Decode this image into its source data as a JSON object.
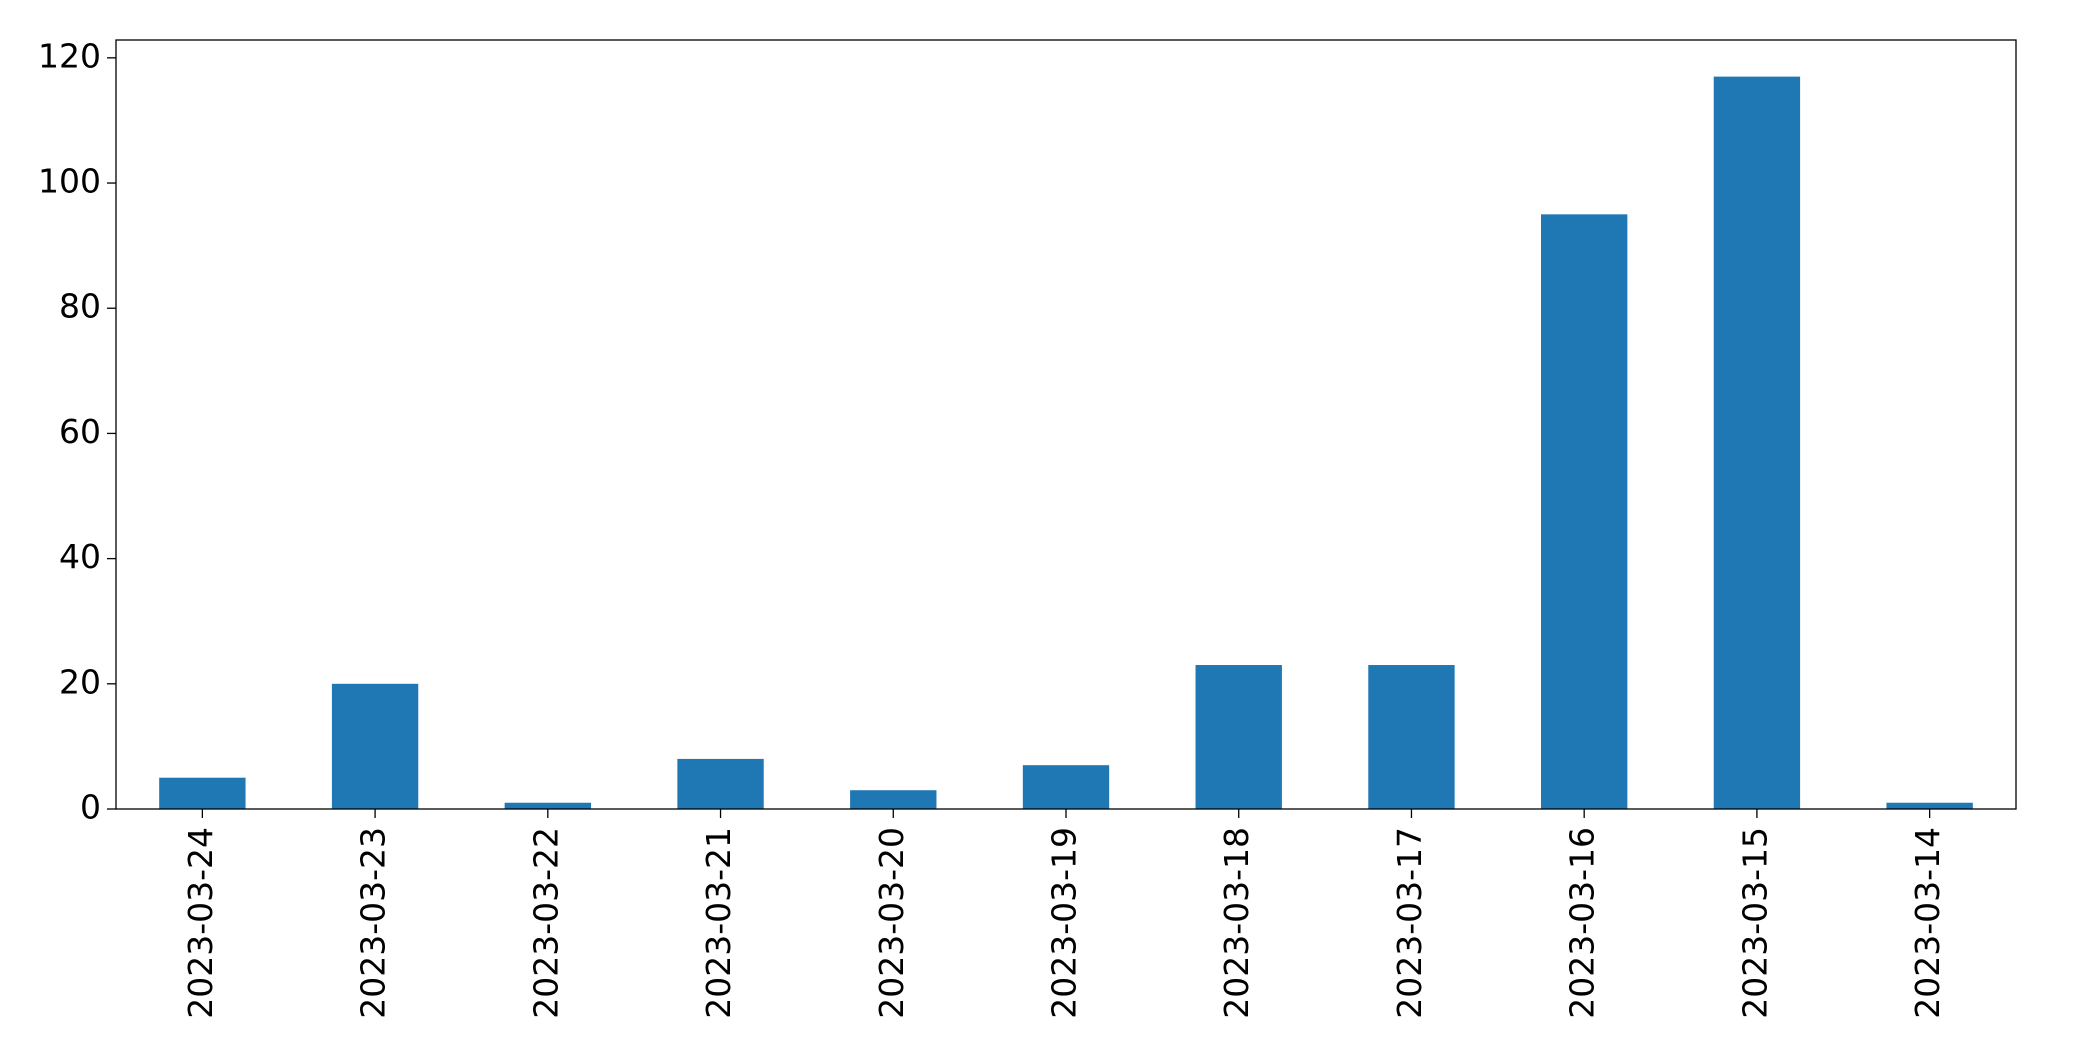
{
  "chart_data": {
    "type": "bar",
    "categories": [
      "2023-03-24",
      "2023-03-23",
      "2023-03-22",
      "2023-03-21",
      "2023-03-20",
      "2023-03-19",
      "2023-03-18",
      "2023-03-17",
      "2023-03-16",
      "2023-03-15",
      "2023-03-14"
    ],
    "values": [
      5,
      20,
      1,
      8,
      3,
      7,
      23,
      23,
      95,
      117,
      1
    ],
    "color": "#1f77b4",
    "ylim": [
      0,
      122.85
    ],
    "yticks": [
      0,
      20,
      40,
      60,
      80,
      100,
      120
    ],
    "grid": false
  }
}
